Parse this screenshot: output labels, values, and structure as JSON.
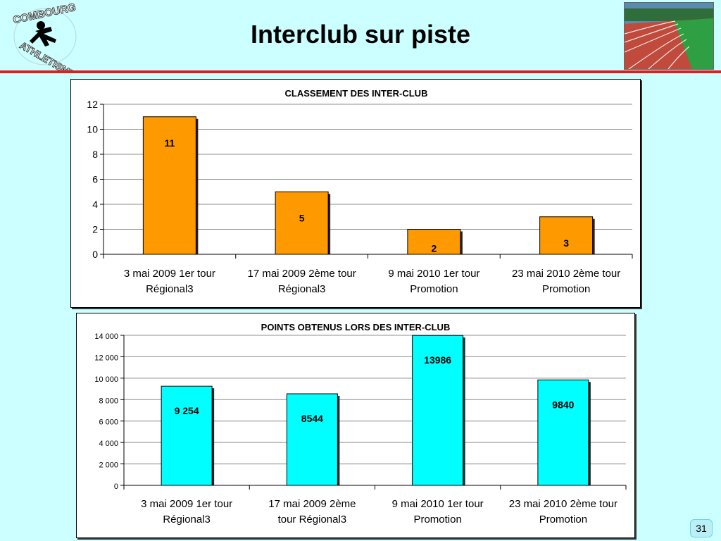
{
  "slide": {
    "title": "Interclub sur piste",
    "page_number": "31"
  },
  "logo": {
    "text": "COMBOURG ATHLETISME",
    "icon": "runner-icon"
  },
  "photo": {
    "subject": "athletics track"
  },
  "colors": {
    "accent_line": "#e21b1b",
    "background": "#ccffff",
    "bar1": "#ff9900",
    "bar2": "#00ffff"
  },
  "chart_data": [
    {
      "type": "bar",
      "title": "CLASSEMENT DES INTER-CLUB",
      "categories": [
        [
          "3 mai 2009 1er tour",
          "Régional3"
        ],
        [
          "17 mai 2009  2ème tour",
          "Régional3"
        ],
        [
          "9 mai 2010 1er tour",
          "Promotion"
        ],
        [
          "23 mai 2010 2ème tour",
          "Promotion"
        ]
      ],
      "values": [
        11,
        5,
        2,
        3
      ],
      "data_labels": [
        "11",
        "5",
        "2",
        "3"
      ],
      "ylim": [
        0,
        12
      ],
      "yticks": [
        0,
        2,
        4,
        6,
        8,
        10,
        12
      ],
      "ytick_labels": [
        "0",
        "2",
        "4",
        "6",
        "8",
        "10",
        "12"
      ],
      "grid": true,
      "legend": "none",
      "color": "#ff9900"
    },
    {
      "type": "bar",
      "title": "POINTS OBTENUS LORS DES INTER-CLUB",
      "categories": [
        [
          "3 mai 2009 1er tour",
          "Régional3"
        ],
        [
          "17 mai 2009  2ème",
          "tour  Régional3"
        ],
        [
          "9 mai 2010 1er tour",
          "Promotion"
        ],
        [
          "23 mai 2010 2ème tour",
          "Promotion"
        ]
      ],
      "values": [
        9254,
        8544,
        13986,
        9840
      ],
      "data_labels": [
        "9 254",
        "8544",
        "13986",
        "9840"
      ],
      "ylim": [
        0,
        14000
      ],
      "yticks": [
        0,
        2000,
        4000,
        6000,
        8000,
        10000,
        12000,
        14000
      ],
      "ytick_labels": [
        "0",
        "2 000",
        "4 000",
        "6 000",
        "8 000",
        "10 000",
        "12 000",
        "14 000"
      ],
      "grid": true,
      "legend": "none",
      "color": "#00ffff"
    }
  ]
}
